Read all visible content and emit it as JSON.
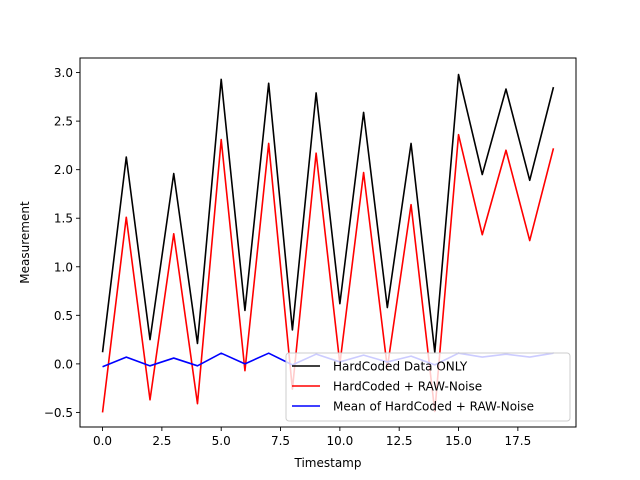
{
  "chart_data": {
    "type": "line",
    "title": "",
    "xlabel": "Timestamp",
    "ylabel": "Measurement",
    "xlim": [
      -0.95,
      19.95
    ],
    "ylim": [
      -0.65,
      3.15
    ],
    "xticks": [
      0.0,
      2.5,
      5.0,
      7.5,
      10.0,
      12.5,
      15.0,
      17.5
    ],
    "xtick_labels": [
      "0.0",
      "2.5",
      "5.0",
      "7.5",
      "10.0",
      "12.5",
      "15.0",
      "17.5"
    ],
    "yticks": [
      -0.5,
      0.0,
      0.5,
      1.0,
      1.5,
      2.0,
      2.5,
      3.0
    ],
    "ytick_labels": [
      "−0.5",
      "0.0",
      "0.5",
      "1.0",
      "1.5",
      "2.0",
      "2.5",
      "3.0"
    ],
    "grid": false,
    "legend_position": "lower-right",
    "x": [
      0,
      1,
      2,
      3,
      4,
      5,
      6,
      7,
      8,
      9,
      10,
      11,
      12,
      13,
      14,
      15,
      16,
      17,
      18,
      19
    ],
    "series": [
      {
        "name": "HardCoded Data ONLY",
        "color": "#000000",
        "values": [
          0.12,
          2.13,
          0.25,
          1.96,
          0.21,
          2.93,
          0.55,
          2.89,
          0.35,
          2.79,
          0.62,
          2.59,
          0.58,
          2.27,
          0.12,
          2.98,
          1.95,
          2.83,
          1.89,
          2.85
        ]
      },
      {
        "name": "HardCoded + RAW-Noise",
        "color": "#ff0000",
        "values": [
          -0.5,
          1.51,
          -0.37,
          1.34,
          -0.41,
          2.31,
          -0.07,
          2.27,
          -0.26,
          2.17,
          0.0,
          1.97,
          -0.04,
          1.64,
          -0.49,
          2.36,
          1.33,
          2.2,
          1.27,
          2.22
        ]
      },
      {
        "name": "Mean of HardCoded + RAW-Noise",
        "color": "#0000ff",
        "values": [
          -0.03,
          0.07,
          -0.02,
          0.06,
          -0.02,
          0.11,
          0.0,
          0.11,
          -0.01,
          0.1,
          0.02,
          0.09,
          0.02,
          0.08,
          -0.01,
          0.11,
          0.07,
          0.1,
          0.07,
          0.11
        ]
      }
    ]
  }
}
